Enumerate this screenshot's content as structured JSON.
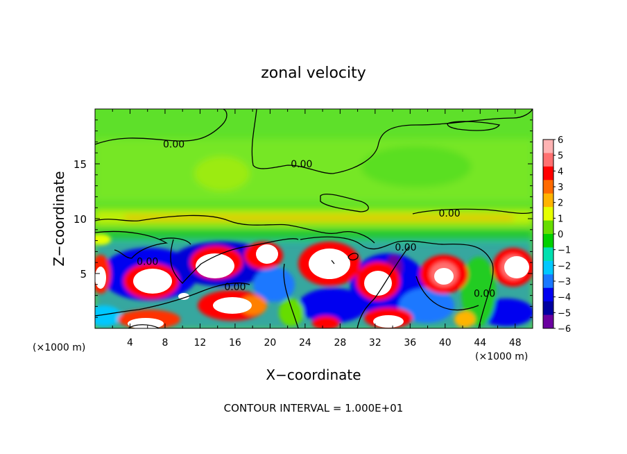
{
  "chart_data": {
    "type": "heatmap",
    "title": "zonal velocity",
    "xlabel": "X−coordinate",
    "ylabel": "Z−coordinate",
    "x_unit_left": "(×1000 m)",
    "x_unit_right": "(×1000 m)",
    "footer": "CONTOUR INTERVAL = 1.000E+01",
    "xlim": [
      0,
      50
    ],
    "ylim": [
      0,
      20
    ],
    "x_ticks": [
      4,
      8,
      12,
      16,
      20,
      24,
      28,
      32,
      36,
      40,
      44,
      48
    ],
    "x_tick_labels": [
      "4",
      "8",
      "12",
      "16",
      "20",
      "24",
      "28",
      "32",
      "36",
      "40",
      "44",
      "48"
    ],
    "y_ticks": [
      5,
      10,
      15
    ],
    "y_tick_labels": [
      "5",
      "10",
      "15"
    ],
    "colorbar": {
      "min": -6,
      "max": 6,
      "labels": [
        "6",
        "5",
        "4",
        "3",
        "2",
        "1",
        "0",
        "−1",
        "−2",
        "−3",
        "−4",
        "−5",
        "−6"
      ],
      "colors": [
        "#ffb3b3",
        "#ff7070",
        "#ff0000",
        "#ff6a00",
        "#ffb400",
        "#e6ff00",
        "#66dd00",
        "#00d000",
        "#00e0b0",
        "#00c8ff",
        "#1a78ff",
        "#0000f0",
        "#0000a0",
        "#6a00a0"
      ]
    },
    "contour_labels": [
      {
        "text": "0.00",
        "x": 9,
        "y": 16.8
      },
      {
        "text": "0.00",
        "x": 23.6,
        "y": 15
      },
      {
        "text": "0.00",
        "x": 40.5,
        "y": 10.5
      },
      {
        "text": "0.00",
        "x": 35.5,
        "y": 7.4
      },
      {
        "text": "0.00",
        "x": 6,
        "y": 6.1
      },
      {
        "text": "0.00",
        "x": 16,
        "y": 3.8
      },
      {
        "text": "0.00",
        "x": 44.5,
        "y": 3.2
      }
    ]
  }
}
